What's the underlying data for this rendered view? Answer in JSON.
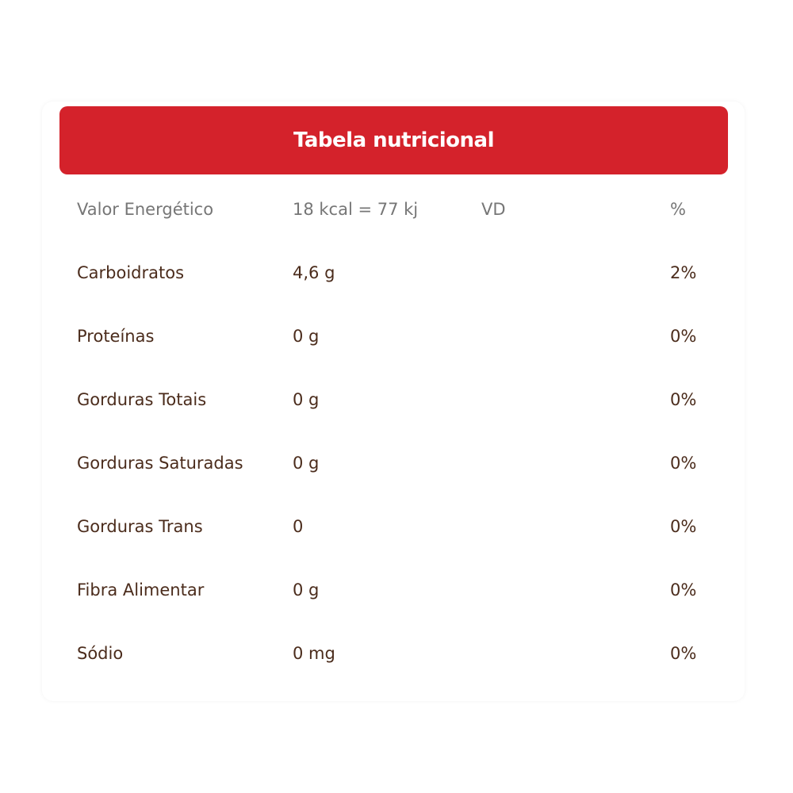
{
  "title": "Tabela nutricional",
  "header_row": {
    "name": "Valor Energético",
    "amount": "18 kcal = 77 kj",
    "vd": "VD",
    "pct": "%"
  },
  "rows": [
    {
      "name": "Carboidratos",
      "amount": "4,6 g",
      "pct": "2%"
    },
    {
      "name": "Proteínas",
      "amount": "0 g",
      "pct": "0%"
    },
    {
      "name": "Gorduras Totais",
      "amount": "0 g",
      "pct": "0%"
    },
    {
      "name": "Gorduras Saturadas",
      "amount": "0 g",
      "pct": "0%"
    },
    {
      "name": "Gorduras Trans",
      "amount": "0",
      "pct": "0%"
    },
    {
      "name": "Fibra Alimentar",
      "amount": "0 g",
      "pct": "0%"
    },
    {
      "name": "Sódio",
      "amount": "0 mg",
      "pct": "0%"
    }
  ],
  "colors": {
    "header_bg": "#d4222b",
    "text": "#4b2c1c",
    "muted": "#767676"
  }
}
